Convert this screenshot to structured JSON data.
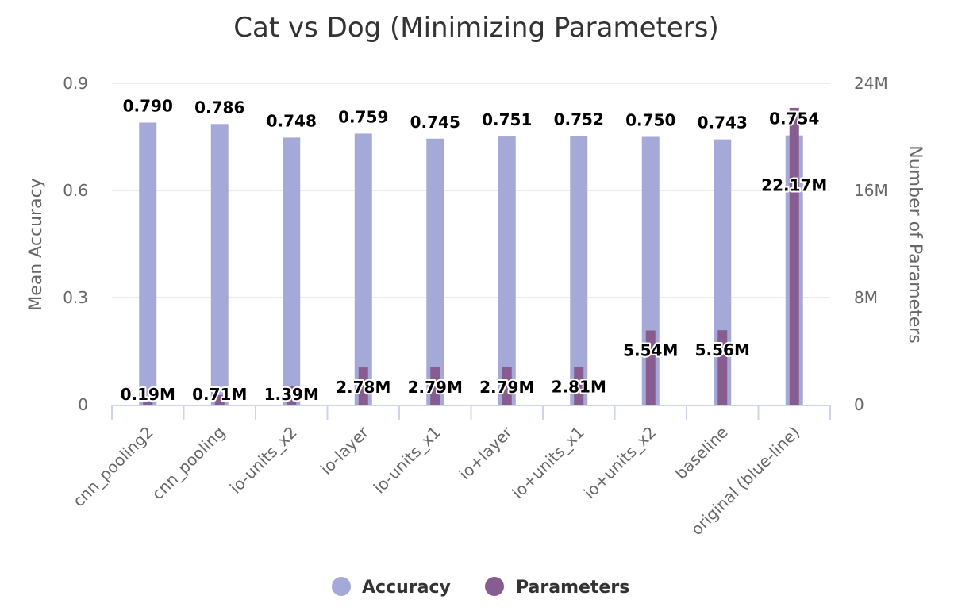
{
  "chart_data": {
    "type": "bar",
    "title": "Cat vs Dog (Minimizing Parameters)",
    "xlabel": "",
    "y_left": {
      "label": "Mean Accuracy",
      "ticks": [
        0,
        0.3,
        0.6,
        0.9
      ],
      "tick_labels": [
        "0",
        "0.3",
        "0.6",
        "0.9"
      ],
      "ylim": [
        0,
        0.9
      ]
    },
    "y_right": {
      "label": "Number of Parameters",
      "ticks": [
        0,
        8,
        16,
        24
      ],
      "tick_labels": [
        "0",
        "8M",
        "16M",
        "24M"
      ],
      "ylim": [
        0,
        24
      ]
    },
    "categories": [
      "cnn_pooling2",
      "cnn_pooling",
      "io-units_x2",
      "io-layer",
      "io-units_x1",
      "io+layer",
      "io+units_x1",
      "io+units_x2",
      "baseline",
      "original (blue-line)"
    ],
    "series": [
      {
        "name": "Accuracy",
        "axis": "left",
        "color": "#a5a9d8",
        "values": [
          0.79,
          0.786,
          0.748,
          0.759,
          0.745,
          0.751,
          0.752,
          0.75,
          0.743,
          0.754
        ],
        "labels": [
          "0.790",
          "0.786",
          "0.748",
          "0.759",
          "0.745",
          "0.751",
          "0.752",
          "0.750",
          "0.743",
          "0.754"
        ]
      },
      {
        "name": "Parameters",
        "axis": "right",
        "color": "#865d8e",
        "values": [
          0.19,
          0.71,
          1.39,
          2.78,
          2.79,
          2.79,
          2.81,
          5.54,
          5.56,
          22.17
        ],
        "labels": [
          "0.19M",
          "0.71M",
          "1.39M",
          "2.78M",
          "2.79M",
          "2.79M",
          "2.81M",
          "5.54M",
          "5.56M",
          "22.17M"
        ]
      }
    ],
    "grid": true,
    "legend": "bottom-center"
  }
}
